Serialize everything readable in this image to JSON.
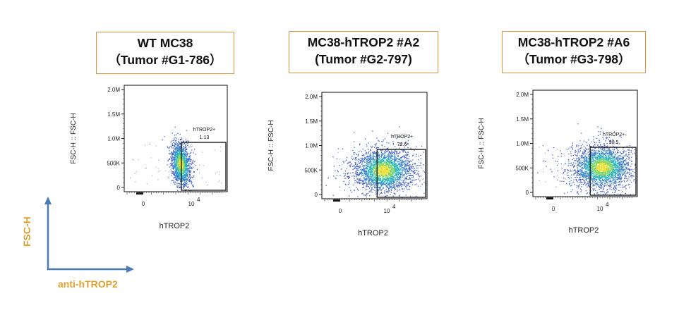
{
  "axis_legend": {
    "y_label": "FSC-H",
    "x_label": "anti-hTROP2",
    "arrow_color": "#4a7ab8",
    "label_color": "#e0a030"
  },
  "colors": {
    "title_border": "#e0913c",
    "density_low": "#3f5fc9",
    "density_mid": "#2db8c0",
    "density_high": "#e8e23a"
  },
  "chart_data": [
    {
      "type": "scatter",
      "title_line1": "WT MC38",
      "title_line2": "（Tumor #G1-786）",
      "ylabel": "FSC-H :: FSC-H",
      "xlabel": "hTROP2",
      "y_ticks": [
        "0",
        "500K",
        "1.0M",
        "1.5M",
        "2.0M"
      ],
      "ylim": [
        0,
        2000000
      ],
      "x_ticks": [
        "0",
        "10"
      ],
      "x_tick_exponent": "4",
      "gate": {
        "name": "hTROP2+",
        "value": "1.13",
        "x_start": 5000,
        "y_range": [
          0,
          920000
        ]
      },
      "cluster_center": {
        "x": 3500,
        "y": 480000
      },
      "spread": "tight"
    },
    {
      "type": "scatter",
      "title_line1": "MC38-hTROP2 #A2",
      "title_line2": "(Tumor #G2-797)",
      "ylabel": "FSC-H :: FSC-H",
      "xlabel": "hTROP2",
      "y_ticks": [
        "0",
        "500K",
        "1.0M",
        "1.5M",
        "2.0M"
      ],
      "ylim": [
        0,
        2000000
      ],
      "x_ticks": [
        "0",
        "10"
      ],
      "x_tick_exponent": "4",
      "gate": {
        "name": "hTROP2+",
        "value": "72.6",
        "x_start": 5000,
        "y_range": [
          0,
          920000
        ]
      },
      "cluster_center": {
        "x": 7000,
        "y": 500000
      },
      "spread": "broad"
    },
    {
      "type": "scatter",
      "title_line1": "MC38-hTROP2 #A6",
      "title_line2": "（Tumor #G3-798）",
      "ylabel": "FSC-H :: FSC-H",
      "xlabel": "hTROP2",
      "y_ticks": [
        "0",
        "500K",
        "1.0M",
        "1.5M",
        "2.0M"
      ],
      "ylim": [
        0,
        2000000
      ],
      "x_ticks": [
        "0",
        "10"
      ],
      "x_tick_exponent": "4",
      "gate": {
        "name": "hTROP2+",
        "value": "90.5",
        "x_start": 5000,
        "y_range": [
          0,
          920000
        ]
      },
      "cluster_center": {
        "x": 12000,
        "y": 520000
      },
      "spread": "broad"
    }
  ]
}
